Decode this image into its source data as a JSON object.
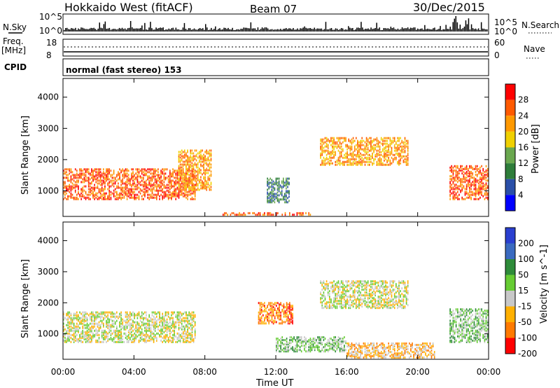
{
  "header": {
    "title": "Hokkaido West (fitACF)",
    "beam": "Beam 07",
    "date": "30/Dec/2015"
  },
  "noise_panel": {
    "left_label": "N.Sky",
    "right_label": "N.Search",
    "left_ticks": [
      "10^5",
      "10^0"
    ],
    "right_ticks": [
      "10^5",
      "10^0"
    ]
  },
  "freq_panel": {
    "left_label_1": "Freq.",
    "left_label_2": "[MHz]",
    "right_label": "Nave",
    "left_ticks": [
      "18",
      "8"
    ],
    "right_ticks": [
      "60",
      "0"
    ]
  },
  "cpid_panel": {
    "label": "CPID",
    "text": "normal (fast stereo) 153"
  },
  "x_axis": {
    "label": "Time UT",
    "ticks": [
      "00:00",
      "04:00",
      "08:00",
      "12:00",
      "16:00",
      "20:00",
      "00:00"
    ],
    "range_hours": [
      0,
      24
    ]
  },
  "power_panel": {
    "ylabel": "Slant Range [km]",
    "yticks": [
      "4000",
      "3000",
      "2000",
      "1000"
    ],
    "colorbar_label": "Power [dB]",
    "colorbar_ticks": [
      "28",
      "24",
      "20",
      "16",
      "12",
      "8",
      "4"
    ],
    "colors": [
      "#0000ff",
      "#2a4fa8",
      "#2e7d3a",
      "#6aa84f",
      "#f0d000",
      "#ff9900",
      "#ff5a00",
      "#ff0000"
    ]
  },
  "velocity_panel": {
    "ylabel": "Slant Range [km]",
    "yticks": [
      "4000",
      "3000",
      "2000",
      "1000"
    ],
    "colorbar_label": "Velocity [m s^-1]",
    "colorbar_ticks": [
      "200",
      "100",
      "50",
      "15",
      "-15",
      "-50",
      "-100",
      "-200"
    ],
    "colors": [
      "#2a3fd0",
      "#3a6ac0",
      "#2e8b3a",
      "#66cc33",
      "#c8c8c8",
      "#ffb000",
      "#ff7a00",
      "#ff0000"
    ]
  },
  "chart_data": {
    "type": "heatmap",
    "x_unit": "hours UT",
    "y_unit": "km",
    "ylim": [
      180,
      4600
    ],
    "power_regions": [
      {
        "t0": 0.0,
        "t1": 7.5,
        "r0": 700,
        "r1": 1700,
        "level": 6
      },
      {
        "t0": 6.5,
        "t1": 8.4,
        "r0": 1000,
        "r1": 2300,
        "level": 5
      },
      {
        "t0": 11.5,
        "t1": 12.8,
        "r0": 600,
        "r1": 1400,
        "level": 2
      },
      {
        "t0": 14.5,
        "t1": 19.5,
        "r0": 1800,
        "r1": 2700,
        "level": 5
      },
      {
        "t0": 21.8,
        "t1": 24.0,
        "r0": 700,
        "r1": 1800,
        "level": 6
      },
      {
        "t0": 9.0,
        "t1": 14.0,
        "r0": 200,
        "r1": 300,
        "level": 6
      }
    ],
    "velocity_regions": [
      {
        "t0": 0.0,
        "t1": 7.5,
        "r0": 700,
        "r1": 1700,
        "level": 4
      },
      {
        "t0": 14.5,
        "t1": 19.5,
        "r0": 1800,
        "r1": 2700,
        "level": 4
      },
      {
        "t0": 11.0,
        "t1": 13.0,
        "r0": 1300,
        "r1": 2000,
        "level": 6
      },
      {
        "t0": 12.0,
        "t1": 16.0,
        "r0": 400,
        "r1": 900,
        "level": 3
      },
      {
        "t0": 16.0,
        "t1": 21.0,
        "r0": 200,
        "r1": 700,
        "level": 5
      },
      {
        "t0": 21.8,
        "t1": 24.0,
        "r0": 700,
        "r1": 1800,
        "level": 3
      }
    ]
  }
}
